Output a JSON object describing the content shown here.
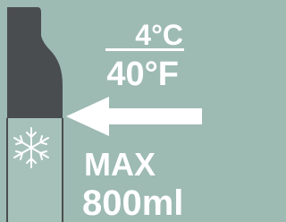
{
  "temperature": {
    "celsius": "4°C",
    "fahrenheit": "40°F"
  },
  "capacity": {
    "label": "MAX",
    "volume": "800ml"
  }
}
